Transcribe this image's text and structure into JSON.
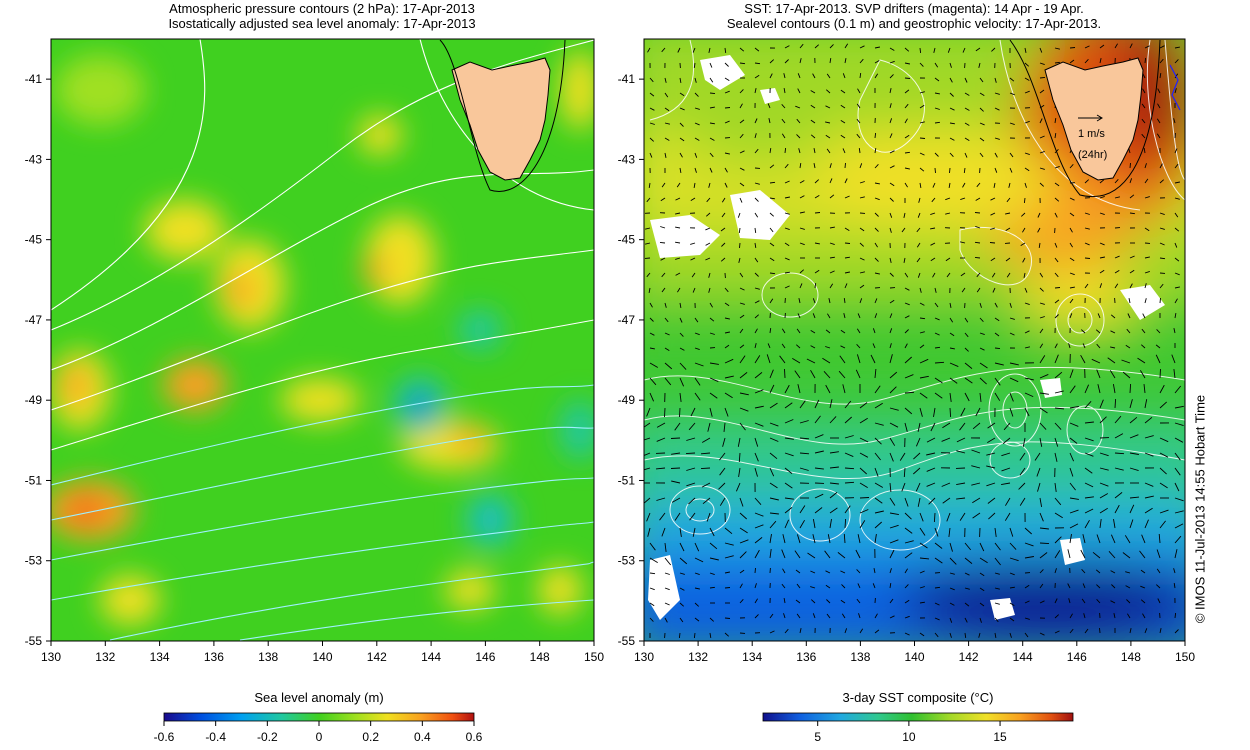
{
  "left_panel": {
    "title_line1": "Atmospheric pressure contours (2 hPa): 17-Apr-2013",
    "title_line2": "Isostatically adjusted sea level anomaly: 17-Apr-2013",
    "x_ticks": [
      "130",
      "132",
      "134",
      "136",
      "138",
      "140",
      "142",
      "144",
      "146",
      "148",
      "150"
    ],
    "y_ticks": [
      "-41",
      "-43",
      "-45",
      "-47",
      "-49",
      "-51",
      "-53",
      "-55"
    ],
    "colorbar_title": "Sea level anomaly (m)",
    "colorbar_ticks": [
      "-0.6",
      "-0.4",
      "-0.2",
      "0",
      "0.2",
      "0.4",
      "0.6"
    ]
  },
  "right_panel": {
    "title_line1": "SST: 17-Apr-2013. SVP drifters (magenta): 14 Apr - 19 Apr.",
    "title_line2": "Sealevel contours (0.1 m) and geostrophic velocity: 17-Apr-2013.",
    "x_ticks": [
      "130",
      "132",
      "134",
      "136",
      "138",
      "140",
      "142",
      "144",
      "146",
      "148",
      "150"
    ],
    "y_ticks": [
      "-41",
      "-43",
      "-45",
      "-47",
      "-49",
      "-51",
      "-53",
      "-55"
    ],
    "scale_label": "1 m/s",
    "scale_sublabel": "(24hr)",
    "colorbar_title": "3-day SST composite (°C)",
    "colorbar_ticks": [
      "5",
      "10",
      "15"
    ]
  },
  "credit": "© IMOS 11-Jul-2013 14:55 Hobart Time",
  "map_extent": {
    "lon": [
      130,
      150
    ],
    "lat": [
      -55,
      -40
    ]
  },
  "colors": {
    "land": "#f9c79b",
    "sla_scale": [
      "#1a0a8c",
      "#0050e0",
      "#00a0f0",
      "#20c8a0",
      "#40d020",
      "#a0e020",
      "#f0e020",
      "#f8a020",
      "#f05010",
      "#b01010"
    ],
    "sst_scale": [
      "#10108c",
      "#1060e0",
      "#20a8e0",
      "#30c890",
      "#30c030",
      "#a0d828",
      "#f0e028",
      "#f8a020",
      "#e05010",
      "#a01010"
    ]
  }
}
